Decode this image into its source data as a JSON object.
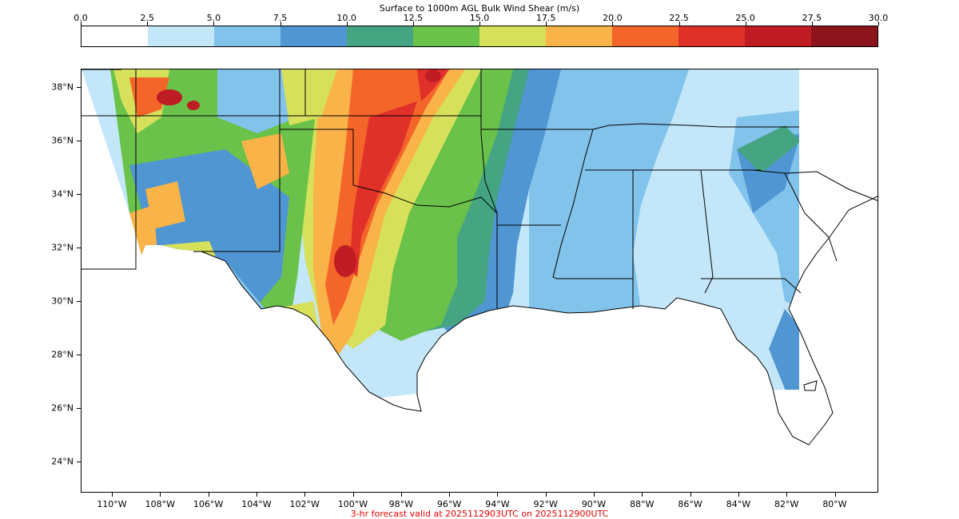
{
  "colorbar": {
    "title": "Surface to 1000m AGL Bulk Wind Shear (m/s)",
    "ticks": [
      "0.0",
      "2.5",
      "5.0",
      "7.5",
      "10.0",
      "12.5",
      "15.0",
      "17.5",
      "20.0",
      "22.5",
      "25.0",
      "27.5",
      "30.0"
    ],
    "colors": [
      "#ffffff",
      "#c3e7f9",
      "#82c3ec",
      "#4f96d2",
      "#45a582",
      "#6ac24a",
      "#d6e05a",
      "#f9b348",
      "#f4652a",
      "#e0302a",
      "#c01c24",
      "#8c141c"
    ]
  },
  "map": {
    "lat_labels": [
      "38°N",
      "36°N",
      "34°N",
      "32°N",
      "30°N",
      "28°N",
      "26°N",
      "24°N"
    ],
    "lon_labels": [
      "110°W",
      "108°W",
      "106°W",
      "104°W",
      "102°W",
      "100°W",
      "98°W",
      "96°W",
      "94°W",
      "92°W",
      "90°W",
      "88°W",
      "86°W",
      "84°W",
      "82°W",
      "80°W"
    ]
  },
  "footer": {
    "forecast_text": "3-hr forecast valid at 2025112903UTC on 2025112900UTC"
  }
}
